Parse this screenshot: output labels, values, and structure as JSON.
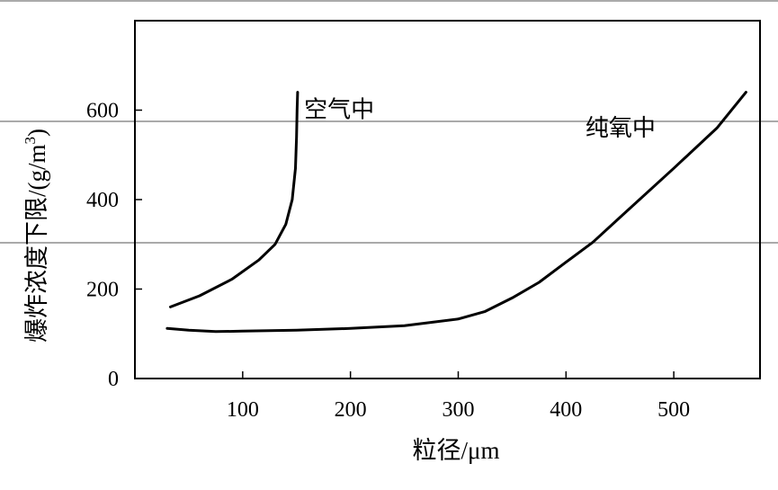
{
  "chart_data": {
    "type": "line",
    "xlabel": "粒径/μm",
    "ylabel_main": "爆炸浓度下限/(g/m",
    "ylabel_sup": "3",
    "ylabel_close": ")",
    "xlim": [
      0,
      580
    ],
    "ylim": [
      0,
      800
    ],
    "x_ticks": [
      100,
      200,
      300,
      400,
      500
    ],
    "y_ticks": [
      0,
      200,
      400,
      600
    ],
    "grid": false,
    "series": [
      {
        "name": "空气中",
        "x": [
          33,
          60,
          90,
          115,
          130,
          140,
          146,
          149,
          150,
          150.5,
          151
        ],
        "y": [
          160,
          185,
          222,
          265,
          300,
          345,
          400,
          470,
          540,
          600,
          640
        ]
      },
      {
        "name": "纯氧中",
        "x": [
          30,
          50,
          75,
          100,
          150,
          200,
          250,
          300,
          325,
          350,
          375,
          400,
          425,
          450,
          500,
          540,
          567
        ],
        "y": [
          112,
          108,
          105,
          106,
          108,
          112,
          118,
          133,
          150,
          180,
          215,
          260,
          305,
          360,
          470,
          560,
          640
        ]
      }
    ]
  }
}
